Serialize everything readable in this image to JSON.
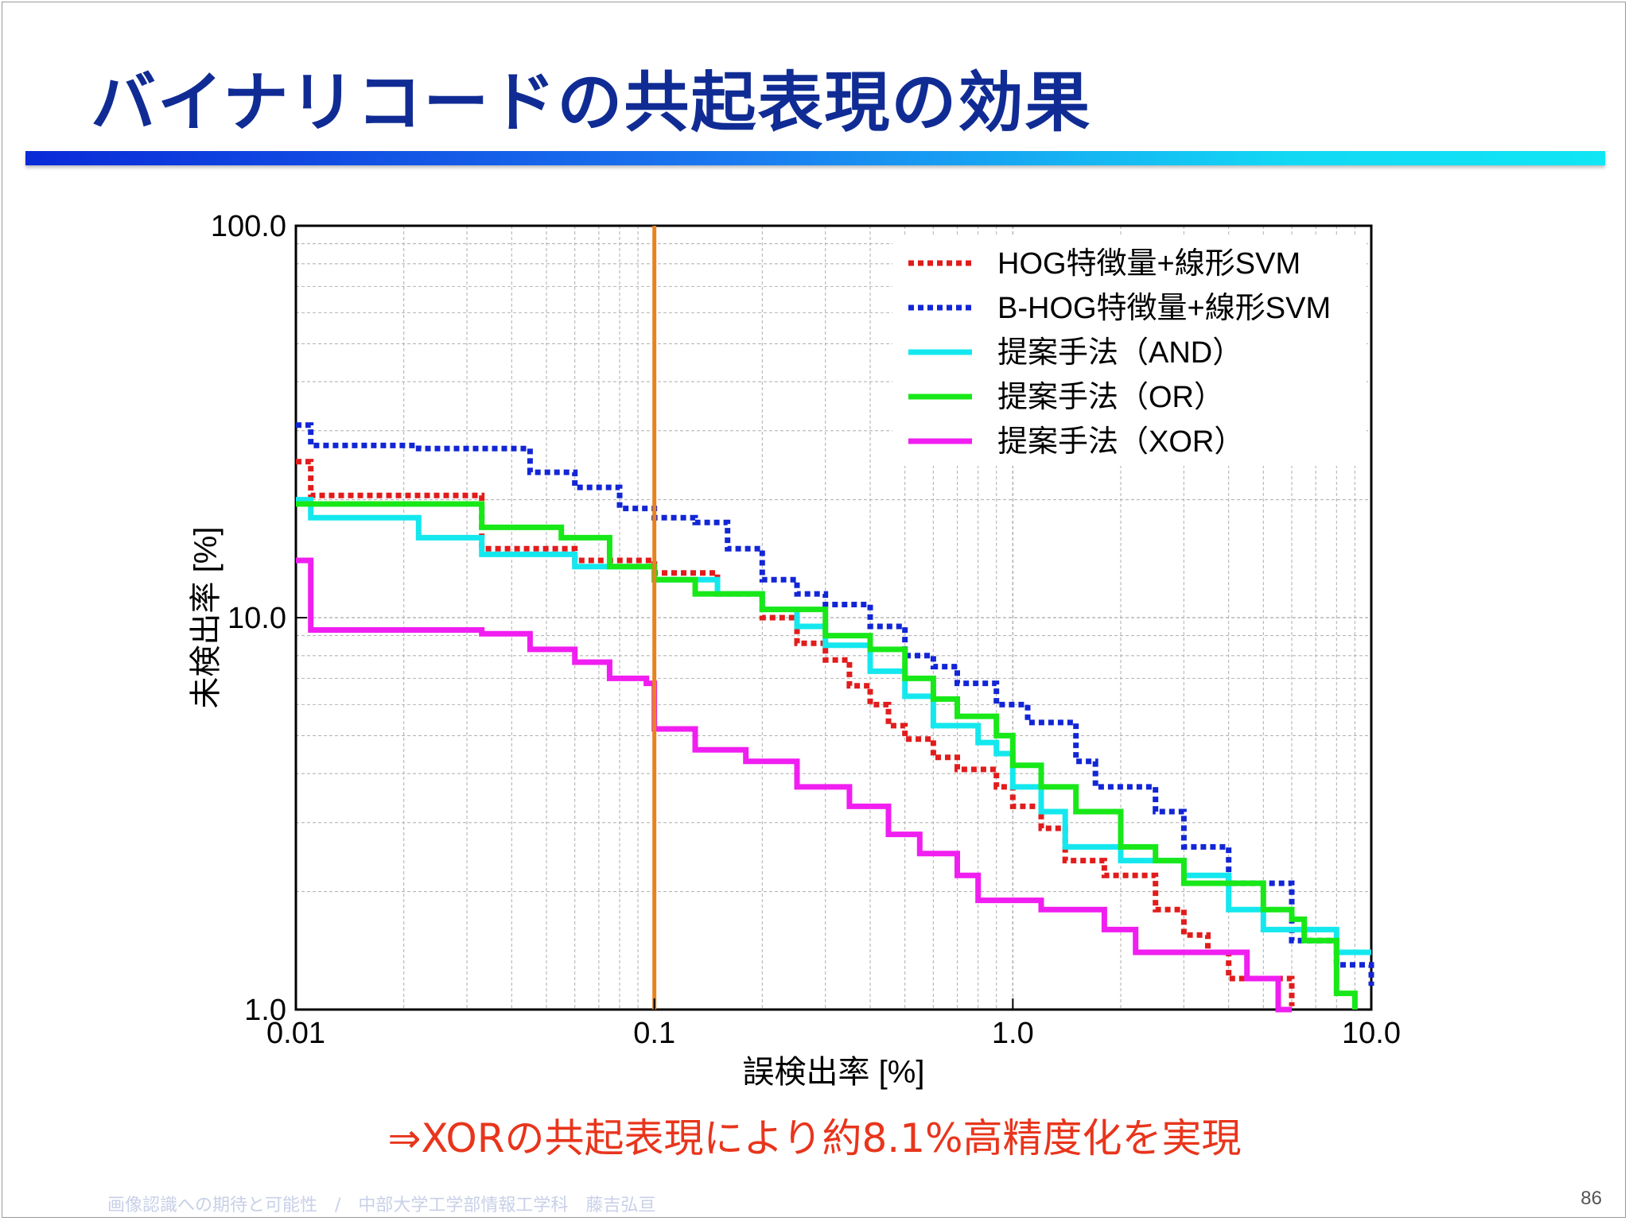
{
  "slide": {
    "title": "バイナリコードの共起表現の効果",
    "conclusion": "⇒XORの共起表現により約8.1%高精度化を実現",
    "footer": "画像認識への期待と可能性　/　中部大学工学部情報工学科　藤吉弘亘",
    "page_number": "86"
  },
  "chart_data": {
    "type": "line",
    "xlabel": "誤検出率 [%]",
    "ylabel": "未検出率 [%]",
    "xscale": "log",
    "yscale": "log",
    "xlim": [
      0.01,
      10.0
    ],
    "ylim": [
      1.0,
      100.0
    ],
    "x_ticks": [
      {
        "value": 0.01,
        "label": "0.01"
      },
      {
        "value": 0.1,
        "label": "0.1"
      },
      {
        "value": 1.0,
        "label": "1.0"
      },
      {
        "value": 10.0,
        "label": "10.0"
      }
    ],
    "y_ticks": [
      {
        "value": 1.0,
        "label": "1.0"
      },
      {
        "value": 10.0,
        "label": "10.0"
      },
      {
        "value": 100.0,
        "label": "100.0"
      }
    ],
    "grid": true,
    "legend_position": "top-right",
    "reference_line": {
      "x": 0.1,
      "color": "#e8821e"
    },
    "series": [
      {
        "name": "HOG特徴量+線形SVM",
        "color": "#e21c1c",
        "style": "dotted",
        "points": [
          [
            0.01,
            25
          ],
          [
            0.011,
            25
          ],
          [
            0.011,
            20.5
          ],
          [
            0.033,
            20.5
          ],
          [
            0.033,
            15
          ],
          [
            0.06,
            14
          ],
          [
            0.1,
            13
          ],
          [
            0.15,
            11.5
          ],
          [
            0.2,
            10
          ],
          [
            0.25,
            8.6
          ],
          [
            0.3,
            7.8
          ],
          [
            0.35,
            6.7
          ],
          [
            0.4,
            6
          ],
          [
            0.45,
            5.3
          ],
          [
            0.5,
            4.9
          ],
          [
            0.6,
            4.4
          ],
          [
            0.7,
            4.1
          ],
          [
            0.9,
            3.7
          ],
          [
            1.0,
            3.3
          ],
          [
            1.2,
            2.9
          ],
          [
            1.4,
            2.4
          ],
          [
            1.8,
            2.2
          ],
          [
            2.5,
            1.8
          ],
          [
            3,
            1.55
          ],
          [
            3.5,
            1.4
          ],
          [
            4,
            1.2
          ],
          [
            6,
            1.2
          ],
          [
            6,
            1.02
          ]
        ]
      },
      {
        "name": "B-HOG特徴量+線形SVM",
        "color": "#1226d6",
        "style": "dotted",
        "points": [
          [
            0.01,
            31
          ],
          [
            0.011,
            31
          ],
          [
            0.011,
            27.5
          ],
          [
            0.022,
            27
          ],
          [
            0.045,
            23.5
          ],
          [
            0.06,
            21.5
          ],
          [
            0.08,
            19
          ],
          [
            0.1,
            18
          ],
          [
            0.13,
            17.5
          ],
          [
            0.16,
            15
          ],
          [
            0.2,
            12.5
          ],
          [
            0.25,
            11.5
          ],
          [
            0.3,
            10.8
          ],
          [
            0.4,
            9.5
          ],
          [
            0.5,
            8
          ],
          [
            0.6,
            7.5
          ],
          [
            0.7,
            6.8
          ],
          [
            0.9,
            6
          ],
          [
            1.1,
            5.4
          ],
          [
            1.5,
            4.3
          ],
          [
            1.7,
            3.7
          ],
          [
            2.5,
            3.2
          ],
          [
            3,
            2.6
          ],
          [
            4,
            2.1
          ],
          [
            6,
            1.5
          ],
          [
            8,
            1.3
          ],
          [
            10,
            1.15
          ]
        ]
      },
      {
        "name": "提案手法（AND）",
        "color": "#14e8ee",
        "style": "solid",
        "points": [
          [
            0.01,
            20
          ],
          [
            0.011,
            20
          ],
          [
            0.011,
            18
          ],
          [
            0.022,
            18
          ],
          [
            0.022,
            16
          ],
          [
            0.033,
            16
          ],
          [
            0.033,
            14.5
          ],
          [
            0.06,
            13.5
          ],
          [
            0.1,
            12.5
          ],
          [
            0.15,
            11.5
          ],
          [
            0.2,
            10.5
          ],
          [
            0.25,
            9.5
          ],
          [
            0.3,
            8.5
          ],
          [
            0.4,
            7.3
          ],
          [
            0.5,
            6.3
          ],
          [
            0.6,
            5.3
          ],
          [
            0.8,
            4.8
          ],
          [
            0.9,
            4.5
          ],
          [
            1.0,
            3.7
          ],
          [
            1.2,
            3.2
          ],
          [
            1.4,
            2.6
          ],
          [
            2,
            2.4
          ],
          [
            3,
            2.2
          ],
          [
            4,
            1.8
          ],
          [
            5,
            1.6
          ],
          [
            8,
            1.6
          ],
          [
            8,
            1.4
          ],
          [
            10,
            1.4
          ]
        ]
      },
      {
        "name": "提案手法（OR）",
        "color": "#18e818",
        "style": "solid",
        "points": [
          [
            0.01,
            19.5
          ],
          [
            0.033,
            19.5
          ],
          [
            0.033,
            17
          ],
          [
            0.055,
            17
          ],
          [
            0.055,
            16
          ],
          [
            0.075,
            16
          ],
          [
            0.075,
            13.5
          ],
          [
            0.1,
            12.5
          ],
          [
            0.13,
            11.5
          ],
          [
            0.2,
            10.5
          ],
          [
            0.3,
            9
          ],
          [
            0.4,
            8.3
          ],
          [
            0.5,
            7
          ],
          [
            0.6,
            6.2
          ],
          [
            0.7,
            5.6
          ],
          [
            0.9,
            5
          ],
          [
            1.0,
            4.2
          ],
          [
            1.2,
            3.7
          ],
          [
            1.5,
            3.2
          ],
          [
            2,
            2.6
          ],
          [
            2.5,
            2.4
          ],
          [
            3,
            2.1
          ],
          [
            4,
            2.1
          ],
          [
            5,
            1.8
          ],
          [
            6,
            1.7
          ],
          [
            6.5,
            1.5
          ],
          [
            8,
            1.1
          ],
          [
            9,
            1.0
          ]
        ]
      },
      {
        "name": "提案手法（XOR）",
        "color": "#f01ef0",
        "style": "solid",
        "points": [
          [
            0.01,
            14
          ],
          [
            0.011,
            14
          ],
          [
            0.011,
            9.3
          ],
          [
            0.033,
            9.1
          ],
          [
            0.045,
            8.3
          ],
          [
            0.06,
            7.7
          ],
          [
            0.075,
            7.0
          ],
          [
            0.095,
            6.8
          ],
          [
            0.1,
            6.8
          ],
          [
            0.1,
            5.2
          ],
          [
            0.13,
            4.6
          ],
          [
            0.18,
            4.3
          ],
          [
            0.25,
            3.7
          ],
          [
            0.35,
            3.3
          ],
          [
            0.45,
            2.8
          ],
          [
            0.55,
            2.5
          ],
          [
            0.7,
            2.2
          ],
          [
            0.8,
            1.9
          ],
          [
            1.2,
            1.8
          ],
          [
            1.8,
            1.6
          ],
          [
            2.2,
            1.4
          ],
          [
            3.5,
            1.4
          ],
          [
            4.5,
            1.2
          ],
          [
            5.5,
            1.0
          ],
          [
            6,
            1.0
          ]
        ]
      }
    ]
  }
}
